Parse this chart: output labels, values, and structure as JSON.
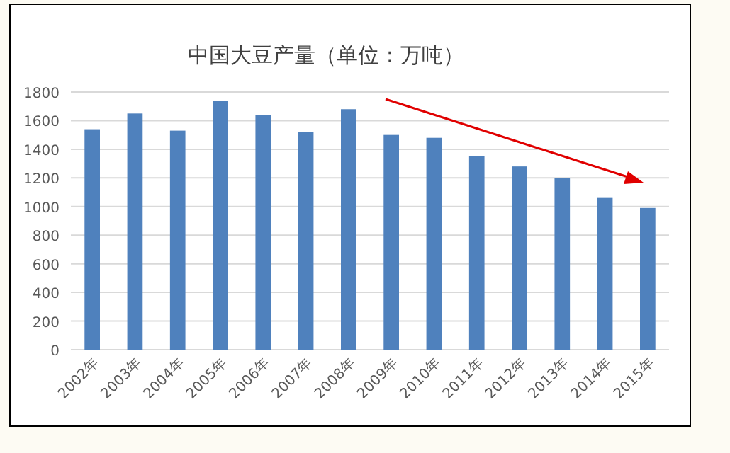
{
  "chart_data": {
    "type": "bar",
    "title": "中国大豆产量（单位：万吨）",
    "categories": [
      "2002年",
      "2003年",
      "2004年",
      "2005年",
      "2006年",
      "2007年",
      "2008年",
      "2009年",
      "2010年",
      "2011年",
      "2012年",
      "2013年",
      "2014年",
      "2015年"
    ],
    "values": [
      1540,
      1650,
      1530,
      1740,
      1640,
      1520,
      1680,
      1500,
      1480,
      1350,
      1280,
      1200,
      1060,
      990
    ],
    "color": "#4f81bd",
    "ylim": [
      0,
      1800
    ],
    "yticks": [
      0,
      200,
      400,
      600,
      800,
      1000,
      1200,
      1400,
      1600,
      1800
    ],
    "grid": "y"
  }
}
